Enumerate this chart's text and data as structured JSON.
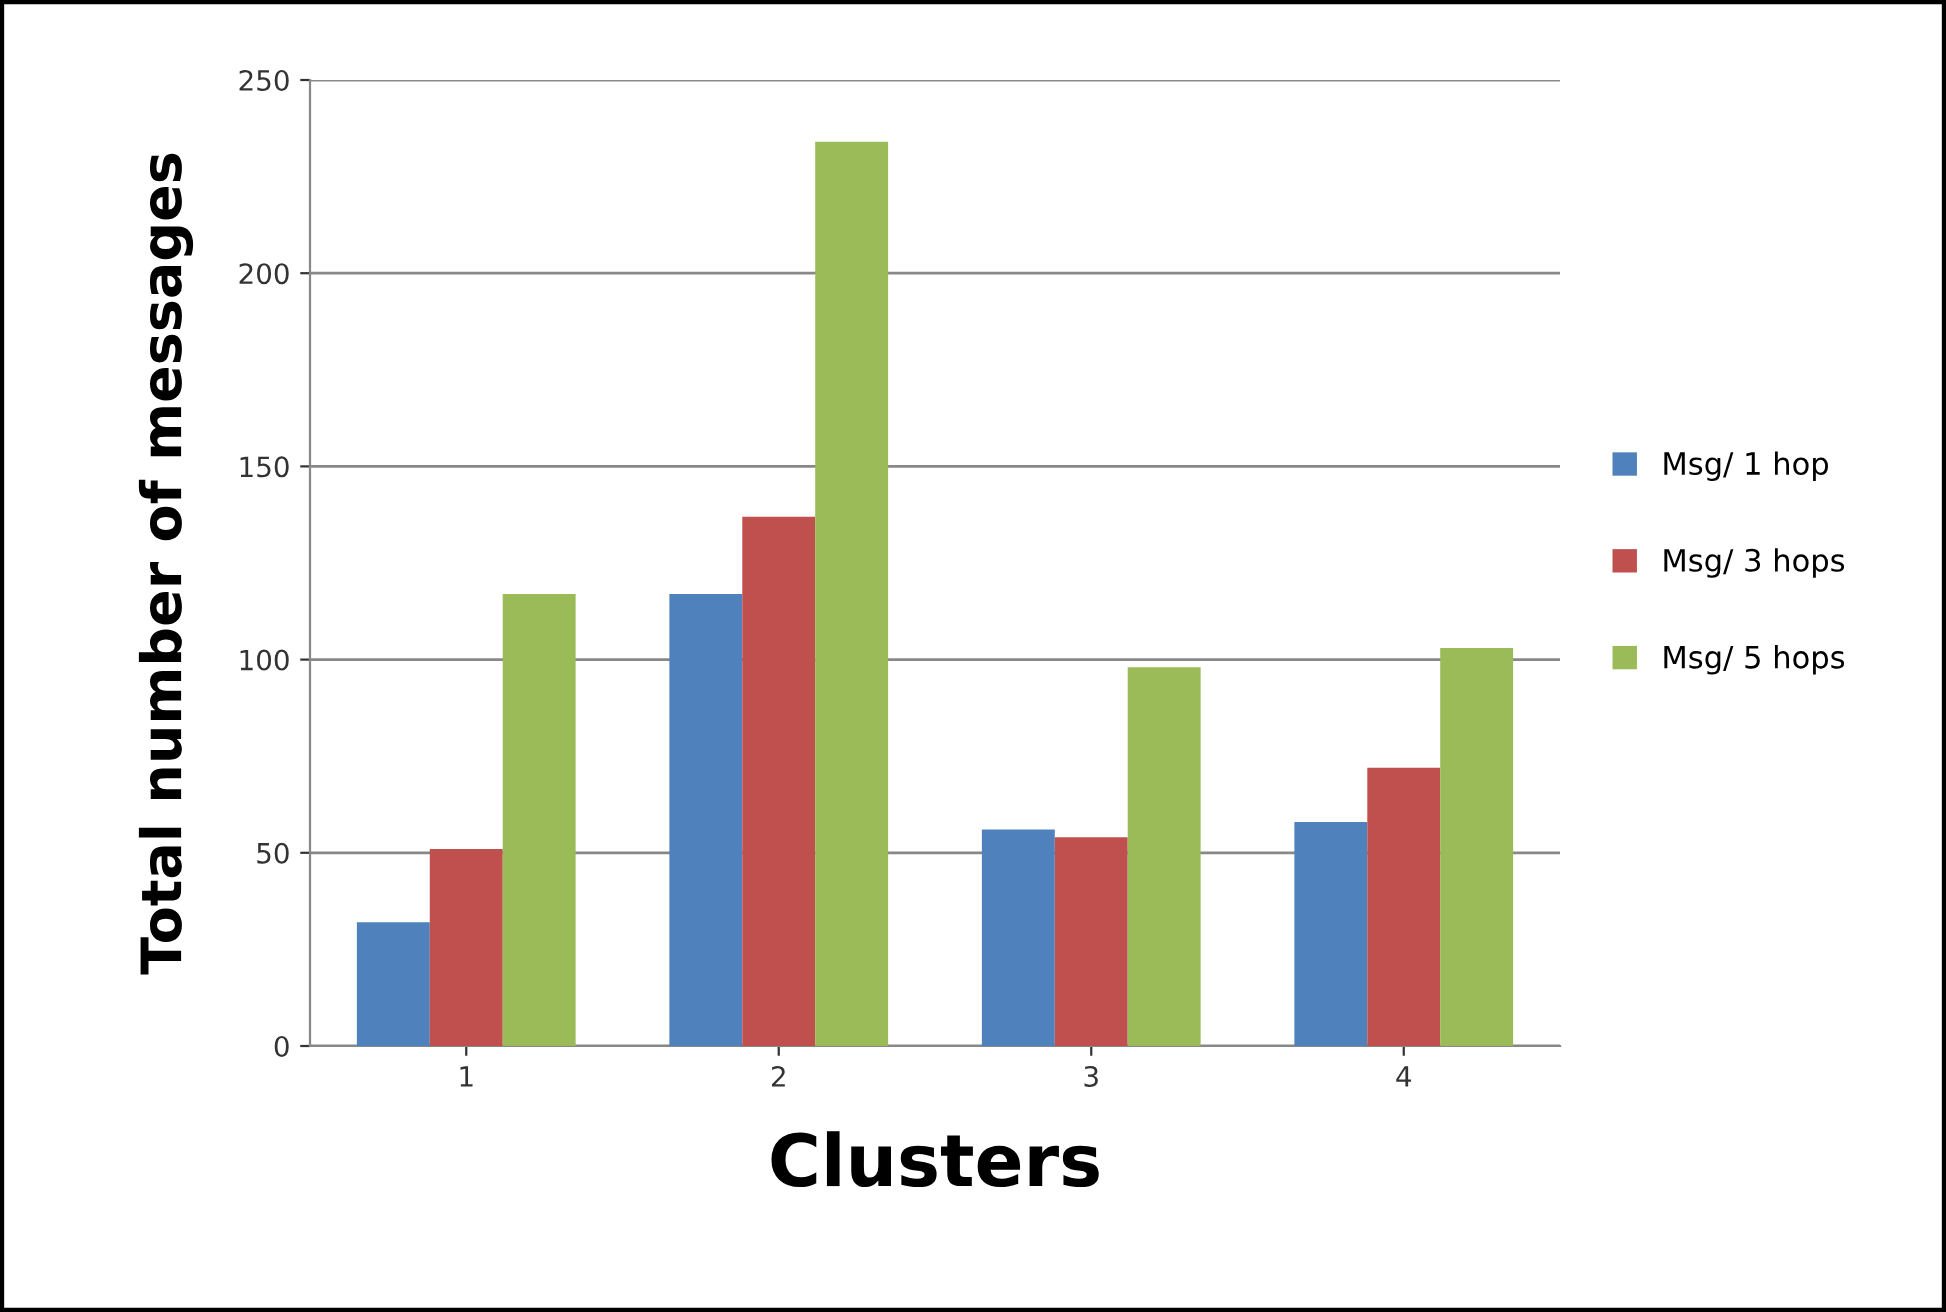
{
  "chart_data": {
    "type": "bar",
    "xlabel": "Clusters",
    "ylabel": "Total number of messages",
    "categories": [
      "1",
      "2",
      "3",
      "4"
    ],
    "series": [
      {
        "name": "Msg/ 1 hop",
        "color": "#4f81bd",
        "values": [
          32,
          117,
          56,
          58
        ]
      },
      {
        "name": "Msg/ 3 hops",
        "color": "#c0504d",
        "values": [
          51,
          137,
          54,
          72
        ]
      },
      {
        "name": "Msg/ 5 hops",
        "color": "#9bbb59",
        "values": [
          117,
          234,
          98,
          103
        ]
      }
    ],
    "ylim": [
      0,
      250
    ],
    "yticks": [
      0,
      50,
      100,
      150,
      200,
      250
    ],
    "grid": "y",
    "legend": "right"
  }
}
